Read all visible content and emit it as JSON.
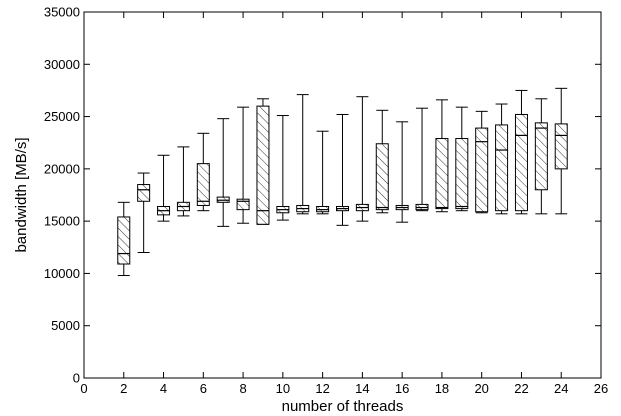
{
  "chart_data": {
    "type": "box",
    "title": "",
    "xlabel": "number of threads",
    "ylabel": "bandwidth [MB/s]",
    "xlim": [
      0,
      26
    ],
    "ylim": [
      0,
      35000
    ],
    "xticks": [
      0,
      2,
      4,
      6,
      8,
      10,
      12,
      14,
      16,
      18,
      20,
      22,
      24,
      26
    ],
    "yticks": [
      0,
      5000,
      10000,
      15000,
      20000,
      25000,
      30000,
      35000
    ],
    "grid": false,
    "box_fill": "hatched",
    "series": [
      {
        "x": [
          2,
          3,
          4,
          5,
          6,
          7,
          8,
          9,
          10,
          11,
          12,
          13,
          14,
          15,
          16,
          17,
          18,
          19,
          20,
          21,
          22,
          23,
          24
        ],
        "min": [
          9800,
          12000,
          15000,
          15500,
          16000,
          14500,
          14800,
          14700,
          15100,
          15700,
          15700,
          14600,
          15000,
          15800,
          14900,
          16000,
          15900,
          16000,
          15800,
          15700,
          15700,
          15700,
          15700
        ],
        "q1": [
          10900,
          16900,
          15600,
          16000,
          16500,
          16800,
          16100,
          14700,
          15800,
          15900,
          15900,
          16000,
          16000,
          16100,
          16100,
          16100,
          16200,
          16200,
          15900,
          16000,
          16000,
          18000,
          20000
        ],
        "median": [
          11900,
          18000,
          16000,
          16400,
          16900,
          17000,
          16900,
          16000,
          16100,
          16200,
          16100,
          16200,
          16300,
          16300,
          16300,
          16300,
          16300,
          16400,
          22600,
          21800,
          23200,
          23900,
          23200
        ],
        "q3": [
          15400,
          18500,
          16400,
          16800,
          20500,
          17300,
          17100,
          26000,
          16400,
          16500,
          16400,
          16400,
          16600,
          22400,
          16500,
          16600,
          22900,
          22900,
          23900,
          24200,
          25200,
          24400,
          24300
        ],
        "max": [
          16800,
          19600,
          21300,
          22100,
          23400,
          24800,
          25900,
          26700,
          25100,
          27100,
          23600,
          25200,
          26900,
          25600,
          24500,
          25800,
          26600,
          25900,
          25500,
          26200,
          27500,
          26700,
          27700
        ]
      }
    ]
  },
  "colors": {
    "axis": "#000000",
    "box_stroke": "#000000",
    "hatch": "#000000",
    "background": "#ffffff"
  }
}
